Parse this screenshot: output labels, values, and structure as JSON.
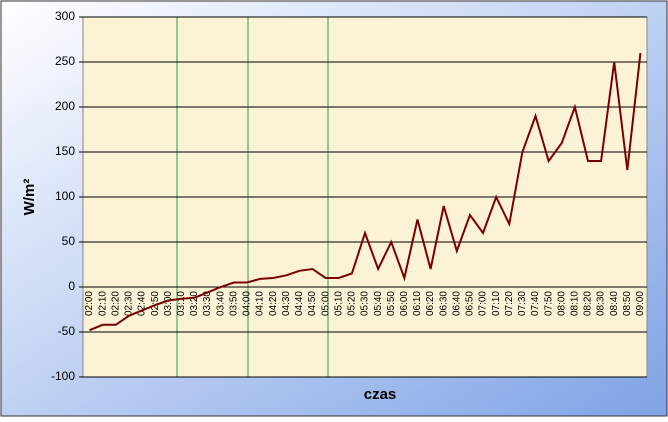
{
  "chart_data": {
    "type": "line",
    "x_label": "czas",
    "y_label": "W/m²",
    "categories": [
      "02:00",
      "02:10",
      "02:20",
      "02:30",
      "02:40",
      "02:50",
      "03:00",
      "03:10",
      "03:20",
      "03:30",
      "03:40",
      "03:50",
      "04:00",
      "04:10",
      "04:20",
      "04:30",
      "04:40",
      "04:50",
      "05:00",
      "05:10",
      "05:20",
      "05:30",
      "05:40",
      "05:50",
      "06:00",
      "06:10",
      "06:20",
      "06:30",
      "06:40",
      "06:50",
      "07:00",
      "07:10",
      "07:20",
      "07:30",
      "07:40",
      "07:50",
      "08:00",
      "08:10",
      "08:20",
      "08:30",
      "08:40",
      "08:50",
      "09:00"
    ],
    "series": [
      {
        "color": "#7a0000",
        "values": [
          -48,
          -42,
          -42,
          -32,
          -26,
          -20,
          -15,
          -13,
          -12,
          -6,
          0,
          5,
          5,
          9,
          10,
          13,
          18,
          20,
          10,
          10,
          15,
          60,
          20,
          50,
          10,
          75,
          20,
          90,
          40,
          80,
          60,
          100,
          70,
          150,
          190,
          140,
          160,
          200,
          140,
          140,
          250,
          130,
          260
        ]
      }
    ],
    "ylim": [
      -100,
      300
    ],
    "yticks": [
      -100,
      -50,
      0,
      50,
      100,
      150,
      200,
      250,
      300
    ],
    "grid": true
  }
}
